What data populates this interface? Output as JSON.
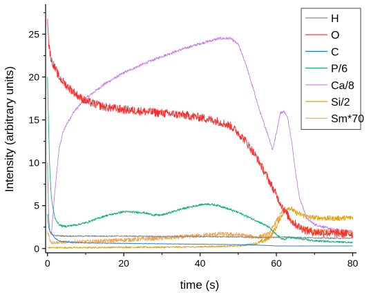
{
  "chart_data": {
    "type": "line",
    "xlabel": "time (s)",
    "ylabel": "Intensity (arbitrary units)",
    "xlim": [
      -0.5,
      81
    ],
    "ylim": [
      -0.5,
      28.5
    ],
    "xticks": [
      0,
      20,
      40,
      60,
      80
    ],
    "yticks": [
      0,
      5,
      10,
      15,
      20,
      25
    ],
    "legend_position": "top-right",
    "series": [
      {
        "name": "H",
        "color": "#8a8a8a",
        "noise": 0.08,
        "x": [
          0,
          0.3,
          0.6,
          1,
          2,
          5,
          10,
          20,
          30,
          40,
          50,
          55,
          60,
          62,
          65,
          70,
          75,
          80
        ],
        "y": [
          10,
          4,
          2,
          1.7,
          1.5,
          1.45,
          1.45,
          1.45,
          1.4,
          1.4,
          1.35,
          1.3,
          1.3,
          1.35,
          1.3,
          1.25,
          1.2,
          1.2
        ]
      },
      {
        "name": "O",
        "color": "#ff2a2a",
        "noise": 0.5,
        "x": [
          0,
          0.3,
          0.6,
          1,
          2,
          3,
          5,
          8,
          10,
          15,
          20,
          25,
          30,
          35,
          40,
          45,
          48,
          50,
          52,
          55,
          58,
          60,
          62,
          64,
          66,
          68,
          70,
          75,
          80
        ],
        "y": [
          27,
          24,
          23,
          22,
          21,
          20,
          19,
          17.8,
          17.2,
          16.5,
          16.2,
          16,
          15.8,
          15.6,
          15.3,
          14.8,
          14.3,
          13.5,
          12.5,
          10.5,
          8,
          6.2,
          4.5,
          3.2,
          2.5,
          2.1,
          1.9,
          1.8,
          1.7
        ]
      },
      {
        "name": "C",
        "color": "#1a7bd6",
        "noise": 0.04,
        "x": [
          0,
          0.3,
          0.6,
          1,
          2,
          3,
          5,
          8,
          10,
          20,
          30,
          40,
          50,
          55,
          58,
          60,
          62,
          65,
          70,
          75,
          80
        ],
        "y": [
          4,
          2.5,
          2,
          1.8,
          1.2,
          0.9,
          0.75,
          0.7,
          0.65,
          0.6,
          0.55,
          0.5,
          0.45,
          0.4,
          0.35,
          0.3,
          0.3,
          0.3,
          0.3,
          0.3,
          0.3
        ]
      },
      {
        "name": "P/6",
        "color": "#10b07a",
        "noise": 0.12,
        "x": [
          0,
          0.3,
          0.6,
          1,
          1.5,
          2,
          3,
          4,
          5,
          8,
          10,
          15,
          20,
          25,
          28,
          30,
          35,
          40,
          42,
          45,
          50,
          55,
          58,
          60,
          62,
          63,
          65,
          70,
          75,
          80
        ],
        "y": [
          20,
          14,
          9,
          6,
          4.5,
          3.5,
          2.8,
          2.6,
          2.6,
          2.8,
          3,
          3.8,
          4.3,
          4.2,
          3.9,
          3.9,
          4.6,
          5.1,
          5.2,
          5,
          4.2,
          3.2,
          2.5,
          1.6,
          1,
          1.3,
          1.2,
          0.9,
          0.8,
          0.7
        ]
      },
      {
        "name": "Ca/8",
        "color": "#c97be8",
        "noise": 0.15,
        "x": [
          1,
          2,
          3,
          4,
          5,
          7,
          10,
          15,
          20,
          25,
          30,
          35,
          40,
          45,
          48,
          50,
          52,
          54,
          56,
          58,
          59,
          60,
          61,
          62,
          63,
          64,
          65,
          66,
          68,
          70,
          75,
          80
        ],
        "y": [
          1.5,
          7,
          11.5,
          13.5,
          14.5,
          16,
          17.5,
          19.2,
          20.5,
          21.5,
          22.4,
          23.2,
          23.9,
          24.5,
          24.5,
          23.8,
          21.5,
          18.5,
          15.5,
          13,
          11.5,
          13.5,
          15.8,
          16,
          15.2,
          12.5,
          9,
          6,
          3.5,
          2.8,
          2.2,
          2
        ]
      },
      {
        "name": "Si/2",
        "color": "#e3a012",
        "noise": 0.3,
        "x": [
          0,
          10,
          20,
          30,
          40,
          50,
          55,
          58,
          60,
          61,
          62,
          63,
          64,
          65,
          68,
          70,
          75,
          80
        ],
        "y": [
          0.1,
          0.1,
          0.15,
          0.15,
          0.2,
          0.3,
          0.6,
          1.2,
          2.5,
          3.6,
          4.3,
          4.8,
          4.6,
          4.2,
          3.7,
          3.6,
          3.5,
          3.6
        ]
      },
      {
        "name": "Sm*70",
        "color": "#f2a24a",
        "noise": 0.25,
        "x": [
          0,
          0.5,
          1,
          3,
          5,
          10,
          20,
          30,
          40,
          45,
          50,
          55,
          58,
          60,
          62,
          63,
          65,
          70,
          75,
          80
        ],
        "y": [
          2,
          1.2,
          0.7,
          0.7,
          0.75,
          0.8,
          1,
          1.2,
          1.5,
          1.7,
          1.6,
          1.3,
          1.7,
          3.2,
          4.6,
          3.8,
          2.6,
          2.1,
          1.9,
          1.8
        ]
      }
    ]
  }
}
